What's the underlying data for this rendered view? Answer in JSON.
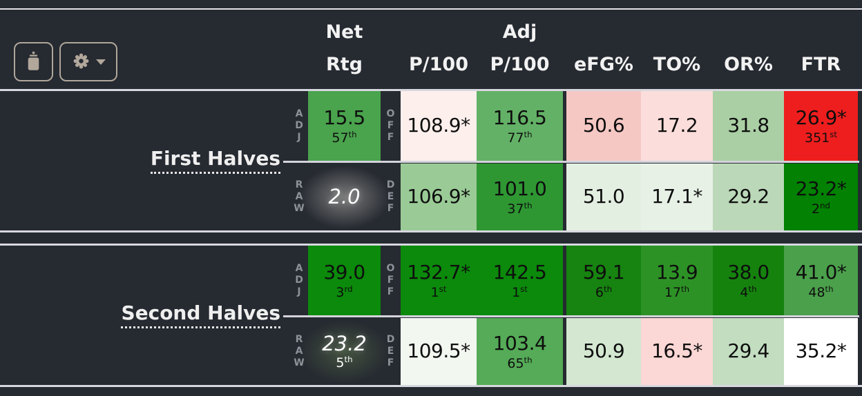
{
  "header": {
    "net_rtg": [
      "Net",
      "Rtg"
    ],
    "p100": "P/100",
    "adj_p100": [
      "Adj",
      "P/100"
    ],
    "efg": "eFG%",
    "to": "TO%",
    "or": "OR%",
    "ftr": "FTR"
  },
  "colors": {
    "background": "#262a31",
    "divider": "#d8d8e0",
    "button_accent": "#b1a79b",
    "positive_strong": "#0b8a0b",
    "negative_strong": "#ee1e1e"
  },
  "groups": [
    {
      "label": "First Halves",
      "rows": [
        {
          "side": "ADJ",
          "phase": "OFF",
          "net": {
            "value": "15.5",
            "rank": "57th",
            "bg": "#4aa34d"
          },
          "p100": {
            "value": "108.9*",
            "rank": "",
            "bg": "#fdefec"
          },
          "adj_p100": {
            "value": "116.5",
            "rank": "77th",
            "bg": "#63b166"
          },
          "efg": {
            "value": "50.6",
            "rank": "",
            "bg": "#f5c8c3"
          },
          "to": {
            "value": "17.2",
            "rank": "",
            "bg": "#fbdddb"
          },
          "or": {
            "value": "31.8",
            "rank": "",
            "bg": "#aacfa4"
          },
          "ftr": {
            "value": "26.9*",
            "rank": "351st",
            "bg": "#ee1e1e"
          }
        },
        {
          "side": "RAW",
          "phase": "DEF",
          "net": {
            "value": "2.0",
            "rank": "",
            "glow": "#7a7a7a"
          },
          "p100": {
            "value": "106.9*",
            "rank": "",
            "bg": "#9acb96"
          },
          "adj_p100": {
            "value": "101.0",
            "rank": "37th",
            "bg": "#2e9732"
          },
          "efg": {
            "value": "51.0",
            "rank": "",
            "bg": "#e3efe1"
          },
          "to": {
            "value": "17.1*",
            "rank": "",
            "bg": "#e7f1e6"
          },
          "or": {
            "value": "29.2",
            "rank": "",
            "bg": "#bbd8b8"
          },
          "ftr": {
            "value": "23.2*",
            "rank": "2nd",
            "bg": "#028102"
          }
        }
      ]
    },
    {
      "label": "Second Halves",
      "rows": [
        {
          "side": "ADJ",
          "phase": "OFF",
          "net": {
            "value": "39.0",
            "rank": "3rd",
            "bg": "#0b8a0b"
          },
          "p100": {
            "value": "132.7*",
            "rank": "1st",
            "bg": "#0b8a0b"
          },
          "adj_p100": {
            "value": "142.5",
            "rank": "1st",
            "bg": "#0b8a0b"
          },
          "efg": {
            "value": "59.1",
            "rank": "6th",
            "bg": "#178310"
          },
          "to": {
            "value": "13.9",
            "rank": "17th",
            "bg": "#2d9226"
          },
          "or": {
            "value": "38.0",
            "rank": "4th",
            "bg": "#15820e"
          },
          "ftr": {
            "value": "41.0*",
            "rank": "48th",
            "bg": "#4ba04b"
          }
        },
        {
          "side": "RAW",
          "phase": "DEF",
          "net": {
            "value": "23.2",
            "rank": "5th",
            "glow": "#43523f"
          },
          "p100": {
            "value": "109.5*",
            "rank": "",
            "bg": "#f2f7f0"
          },
          "adj_p100": {
            "value": "103.4",
            "rank": "65th",
            "bg": "#55ab57"
          },
          "efg": {
            "value": "50.9",
            "rank": "",
            "bg": "#d3e7d1"
          },
          "to": {
            "value": "16.5*",
            "rank": "",
            "bg": "#fbd7d5"
          },
          "or": {
            "value": "29.4",
            "rank": "",
            "bg": "#c2ddc0"
          },
          "ftr": {
            "value": "35.2*",
            "rank": "",
            "bg": "#ffffff"
          }
        }
      ]
    }
  ]
}
